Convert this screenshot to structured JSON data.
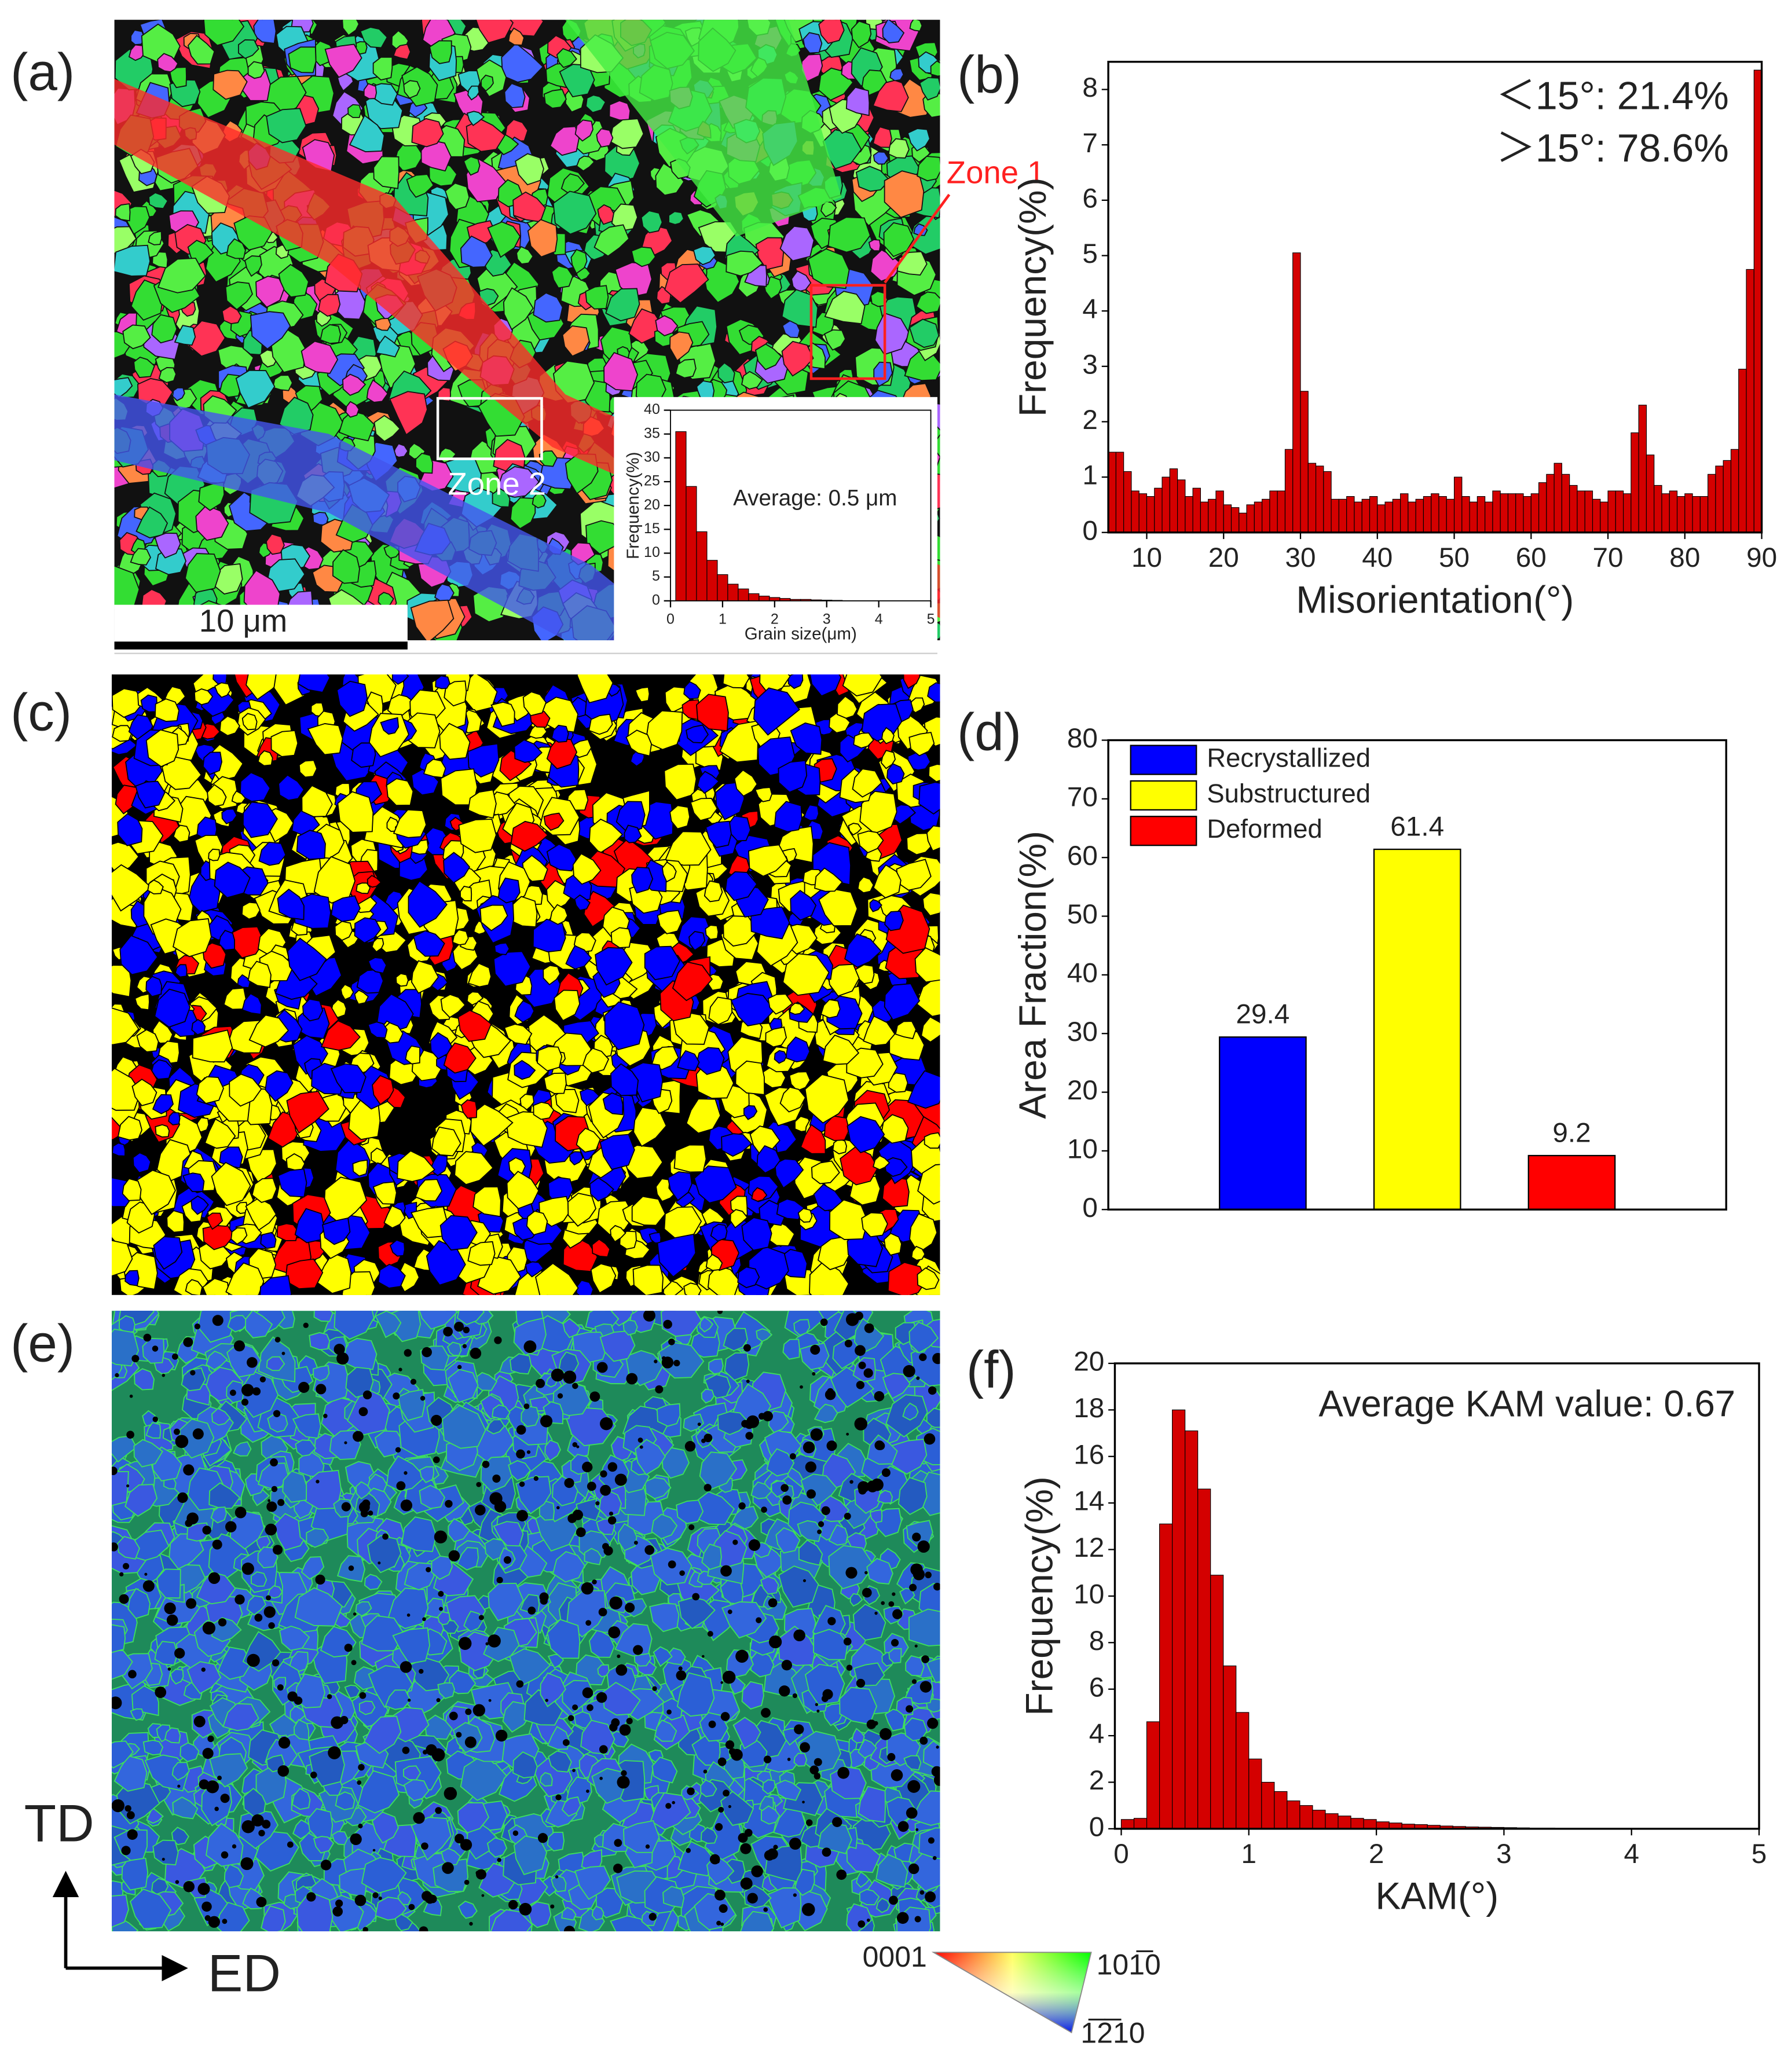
{
  "maps": {
    "a": {
      "label": "(a)",
      "scale_bar": "10 μm",
      "zones": [
        "Zone 1",
        "Zone 2"
      ]
    },
    "c": {
      "label": "(c)"
    },
    "e": {
      "label": "(e)"
    }
  },
  "axes_key": {
    "td": "TD",
    "ed": "ED"
  },
  "color_key": {
    "labels": [
      "0001",
      "101̅0",
      "1̅2̅10"
    ]
  },
  "chart_data": [
    {
      "type": "histogram",
      "xlabel": "Grain size(μm)",
      "ylabel": "Frequency(%)",
      "annotation": "Average: 0.5 μm",
      "color": "#d40000",
      "bins": [
        0.1,
        0.3,
        0.5,
        0.7,
        0.9,
        1.1,
        1.3,
        1.5,
        1.7,
        1.9,
        2.1,
        2.3,
        2.5,
        2.7,
        2.9,
        3.1,
        3.3
      ],
      "values": [
        35.5,
        24,
        14.5,
        8.5,
        5.5,
        3.5,
        2.5,
        1.5,
        1.0,
        0.7,
        0.5,
        0.3,
        0.3,
        0.2,
        0.15,
        0.1
      ],
      "xlim": [
        0,
        5
      ],
      "ylim": [
        0,
        40
      ],
      "xticks": [
        0,
        1,
        2,
        3,
        4,
        5
      ],
      "yticks": [
        0,
        5,
        10,
        15,
        20,
        25,
        30,
        35,
        40
      ]
    },
    {
      "type": "histogram",
      "label": "(b)",
      "xlabel": "Misorientation(°)",
      "ylabel": "Frequency(%)",
      "annotations": [
        "＜15°: 21.4%",
        "＞15°: 78.6%"
      ],
      "color": "#d40000",
      "bins": [
        5,
        6,
        7,
        8,
        9,
        10,
        11,
        12,
        13,
        14,
        15,
        16,
        17,
        18,
        19,
        20,
        21,
        22,
        23,
        24,
        25,
        26,
        27,
        28,
        29,
        30,
        31,
        32,
        33,
        34,
        35,
        36,
        37,
        38,
        39,
        40,
        41,
        42,
        43,
        44,
        45,
        46,
        47,
        48,
        49,
        50,
        51,
        52,
        53,
        54,
        55,
        56,
        57,
        58,
        59,
        60,
        61,
        62,
        63,
        64,
        65,
        66,
        67,
        68,
        69,
        70,
        71,
        72,
        73,
        74,
        75,
        76,
        77,
        78,
        79,
        80,
        81,
        82,
        83,
        84,
        85,
        86,
        87,
        88,
        89,
        90
      ],
      "values": [
        1.45,
        1.45,
        1.1,
        0.75,
        0.7,
        0.65,
        0.8,
        1.0,
        1.15,
        0.95,
        0.65,
        0.8,
        0.55,
        0.6,
        0.75,
        0.5,
        0.45,
        0.35,
        0.5,
        0.55,
        0.6,
        0.75,
        0.75,
        1.5,
        5.05,
        2.55,
        1.25,
        1.2,
        1.1,
        0.6,
        0.6,
        0.65,
        0.55,
        0.6,
        0.65,
        0.5,
        0.55,
        0.6,
        0.7,
        0.55,
        0.6,
        0.65,
        0.7,
        0.65,
        0.6,
        1.0,
        0.65,
        0.55,
        0.65,
        0.55,
        0.75,
        0.7,
        0.7,
        0.7,
        0.65,
        0.7,
        0.9,
        1.05,
        1.25,
        1.05,
        0.85,
        0.75,
        0.75,
        0.6,
        0.55,
        0.75,
        0.75,
        0.7,
        1.8,
        2.3,
        1.4,
        0.85,
        0.7,
        0.75,
        0.65,
        0.7,
        0.65,
        0.65,
        1.05,
        1.2,
        1.3,
        1.5,
        2.95,
        4.75,
        8.35
      ],
      "xlim": [
        5,
        90
      ],
      "ylim": [
        0,
        8.5
      ],
      "xticks": [
        10,
        20,
        30,
        40,
        50,
        60,
        70,
        80,
        90
      ],
      "yticks": [
        0,
        1,
        2,
        3,
        4,
        5,
        6,
        7,
        8
      ]
    },
    {
      "type": "bar",
      "label": "(d)",
      "ylabel": "Area Fraction(%)",
      "categories": [
        "Recrystallized",
        "Substructured",
        "Deformed"
      ],
      "values": [
        29.4,
        61.4,
        9.2
      ],
      "colors": [
        "#0000ff",
        "#ffff00",
        "#ff0000"
      ],
      "ylim": [
        0,
        80
      ],
      "yticks": [
        0,
        10,
        20,
        30,
        40,
        50,
        60,
        70,
        80
      ]
    },
    {
      "type": "histogram",
      "label": "(f)",
      "xlabel": "KAM(°)",
      "ylabel": "Frequency(%)",
      "annotation": "Average KAM value: 0.67",
      "color": "#d40000",
      "bins": [
        0,
        0.1,
        0.2,
        0.3,
        0.4,
        0.5,
        0.6,
        0.7,
        0.8,
        0.9,
        1.0,
        1.1,
        1.2,
        1.3,
        1.4,
        1.5,
        1.6,
        1.7,
        1.8,
        1.9,
        2.0,
        2.1,
        2.2,
        2.3,
        2.4,
        2.5,
        2.6,
        2.7,
        2.8,
        2.9,
        3.0,
        3.1,
        3.2,
        3.3,
        3.4,
        3.5,
        3.6,
        3.7,
        3.8,
        3.9,
        4.0,
        4.1,
        4.2,
        4.3,
        4.4,
        4.5,
        4.6,
        4.7,
        4.8,
        4.9,
        5.0
      ],
      "values": [
        0.4,
        0.45,
        4.6,
        13.1,
        18.0,
        17.1,
        14.6,
        10.9,
        7.0,
        5.0,
        3.0,
        2.0,
        1.6,
        1.2,
        1.0,
        0.8,
        0.65,
        0.55,
        0.45,
        0.4,
        0.3,
        0.25,
        0.2,
        0.18,
        0.15,
        0.12,
        0.1,
        0.08,
        0.07,
        0.06,
        0.05,
        0.04,
        0.03,
        0.03,
        0.02,
        0.02,
        0.02,
        0.01,
        0.01,
        0.01,
        0.01,
        0.01,
        0.01,
        0.01,
        0.01,
        0.01,
        0.01,
        0.01,
        0.01,
        0.01
      ],
      "xlim": [
        -0.05,
        5
      ],
      "ylim": [
        0,
        20
      ],
      "xticks": [
        0,
        1,
        2,
        3,
        4,
        5
      ],
      "yticks": [
        0,
        2,
        4,
        6,
        8,
        10,
        12,
        14,
        16,
        18,
        20
      ]
    }
  ]
}
